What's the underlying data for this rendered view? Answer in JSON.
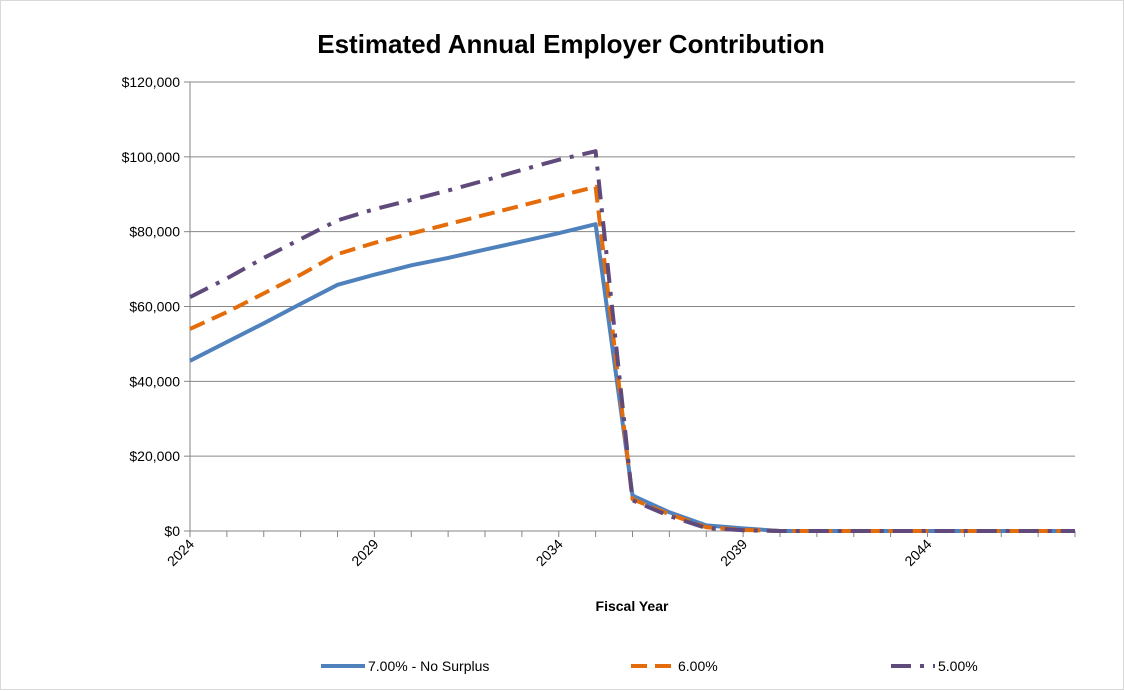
{
  "chart_data": {
    "type": "line",
    "title": "Estimated Annual Employer Contribution",
    "xlabel": "Fiscal Year",
    "ylabel": "",
    "xlim": [
      2024,
      2048
    ],
    "ylim": [
      0,
      120000
    ],
    "x_ticks": [
      2024,
      2029,
      2034,
      2039,
      2044
    ],
    "y_ticks": [
      "$0",
      "$20,000",
      "$40,000",
      "$60,000",
      "$80,000",
      "$100,000",
      "$120,000"
    ],
    "y_tick_values": [
      0,
      20000,
      40000,
      60000,
      80000,
      100000,
      120000
    ],
    "grid": "horizontal",
    "legend_position": "bottom",
    "x": [
      2024,
      2025,
      2026,
      2027,
      2028,
      2029,
      2030,
      2031,
      2032,
      2033,
      2034,
      2035,
      2036,
      2037,
      2038,
      2039,
      2040,
      2041,
      2042,
      2043,
      2044,
      2045,
      2046,
      2047,
      2048
    ],
    "series": [
      {
        "name": "7.00% - No Surplus",
        "color": "#4f81bd",
        "dash": "solid",
        "values": [
          45500,
          50500,
          55500,
          60700,
          65800,
          68500,
          71000,
          73000,
          75200,
          77400,
          79600,
          82000,
          9500,
          5000,
          1500,
          700,
          0,
          0,
          0,
          0,
          0,
          0,
          0,
          0,
          0
        ]
      },
      {
        "name": "6.00%",
        "color": "#e46c0a",
        "dash": "dash",
        "values": [
          54000,
          58500,
          63500,
          68500,
          74000,
          77000,
          79500,
          82000,
          84500,
          87000,
          89500,
          92000,
          8500,
          4500,
          1000,
          300,
          0,
          0,
          0,
          0,
          0,
          0,
          0,
          0,
          0
        ]
      },
      {
        "name": "5.00%",
        "color": "#604a7b",
        "dash": "dashdot",
        "values": [
          62500,
          67500,
          73000,
          78000,
          83000,
          86000,
          88500,
          91000,
          93700,
          96500,
          99200,
          101500,
          8200,
          4000,
          800,
          200,
          0,
          0,
          0,
          0,
          0,
          0,
          0,
          0,
          0
        ]
      }
    ]
  }
}
